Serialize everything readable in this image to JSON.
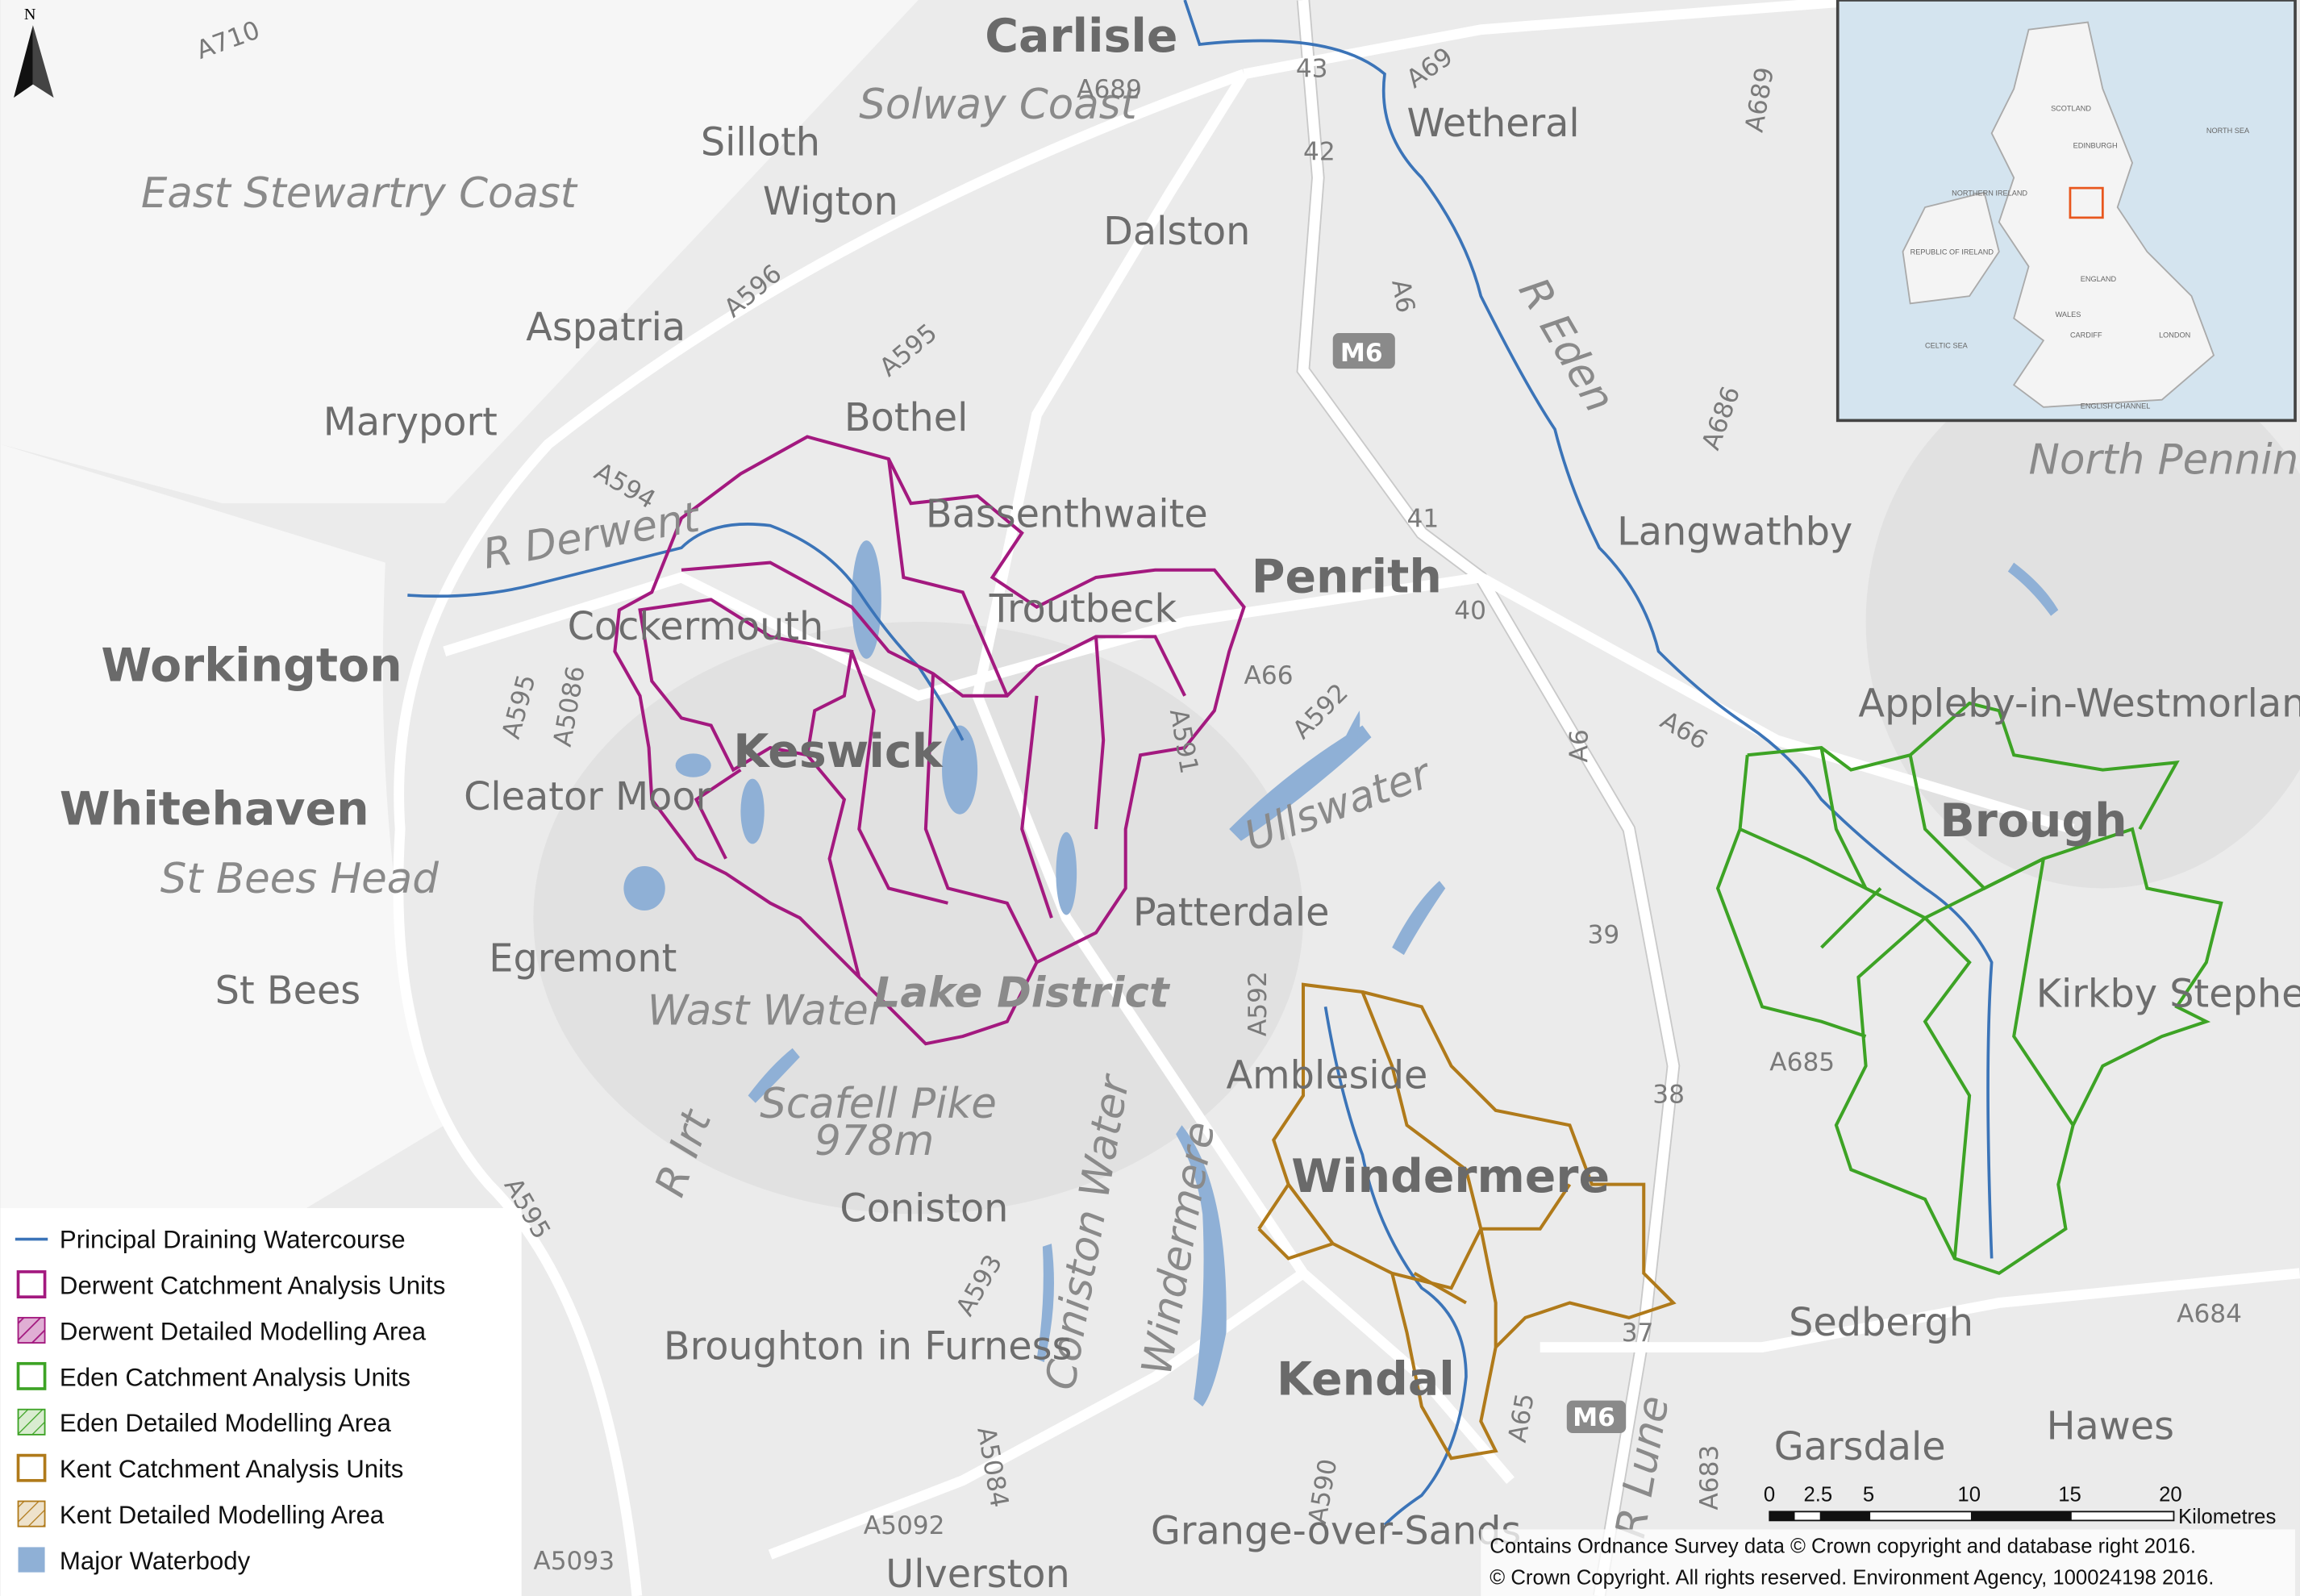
{
  "north_arrow": "N",
  "places": [
    "Carlisle",
    "Wetheral",
    "Silloth",
    "Solway Coast",
    "Wigton",
    "Dalston",
    "East Stewartry Coast",
    "Aspatria",
    "Maryport",
    "Bothel",
    "Bassenthwaite",
    "Penrith",
    "Langwathby",
    "Workington",
    "Cockermouth",
    "Troutbeck",
    "Keswick",
    "Whitehaven",
    "Cleator Moor",
    "St Bees Head",
    "St Bees",
    "Egremont",
    "Patterdale",
    "Ullswater",
    "Lake District",
    "Wast Water",
    "Scafell Pike",
    "978m",
    "Ambleside",
    "Coniston",
    "Windermere",
    "Windermere",
    "Coniston Water",
    "Broughton in Furness",
    "Kendal",
    "Grange-over-Sands",
    "Ulverston",
    "Sedbergh",
    "Garsdale",
    "Hawes",
    "Appleby-in-Westmorland",
    "Brough",
    "Kirkby Stephen",
    "North Pennines",
    "R Eden",
    "R Derwent",
    "R Lune",
    "R Irt"
  ],
  "roads": [
    "A710",
    "A689",
    "A69",
    "A689",
    "A596",
    "A595",
    "M6",
    "A6",
    "A594",
    "A66",
    "A592",
    "A591",
    "A5086",
    "A595",
    "A593",
    "A5084",
    "A5092",
    "A5093",
    "A590",
    "A65",
    "A683",
    "A684",
    "A685",
    "A686",
    "A66",
    "A6",
    "M6",
    "A592",
    "A595"
  ],
  "junctions": [
    "43",
    "42",
    "41",
    "40",
    "39",
    "38",
    "37"
  ],
  "legend": [
    "Principal Draining Watercourse",
    "Derwent Catchment Analysis Units",
    "Derwent Detailed Modelling Area",
    "Eden Catchment Analysis Units",
    "Eden Detailed Modelling Area",
    "Kent Catchment Analysis Units",
    "Kent Detailed Modelling Area",
    "Major Waterbody"
  ],
  "scale_bar": {
    "ticks": [
      "0",
      "2.5",
      "5",
      "10",
      "15",
      "20"
    ],
    "unit": "Kilometres"
  },
  "attribution": [
    "Contains Ordnance Survey data © Crown copyright and database right 2016.",
    "© Crown Copyright. All rights reserved. Environment Agency, 100024198 2016."
  ],
  "inset": {
    "labels": [
      "SCOTLAND",
      "ENGLAND",
      "WALES",
      "NORTHERN IRELAND",
      "REPUBLIC OF IRELAND",
      "EDINBURGH",
      "LONDON",
      "CARDIFF",
      "NORTH SEA",
      "CELTIC SEA",
      "ENGLISH CHANNEL"
    ]
  }
}
